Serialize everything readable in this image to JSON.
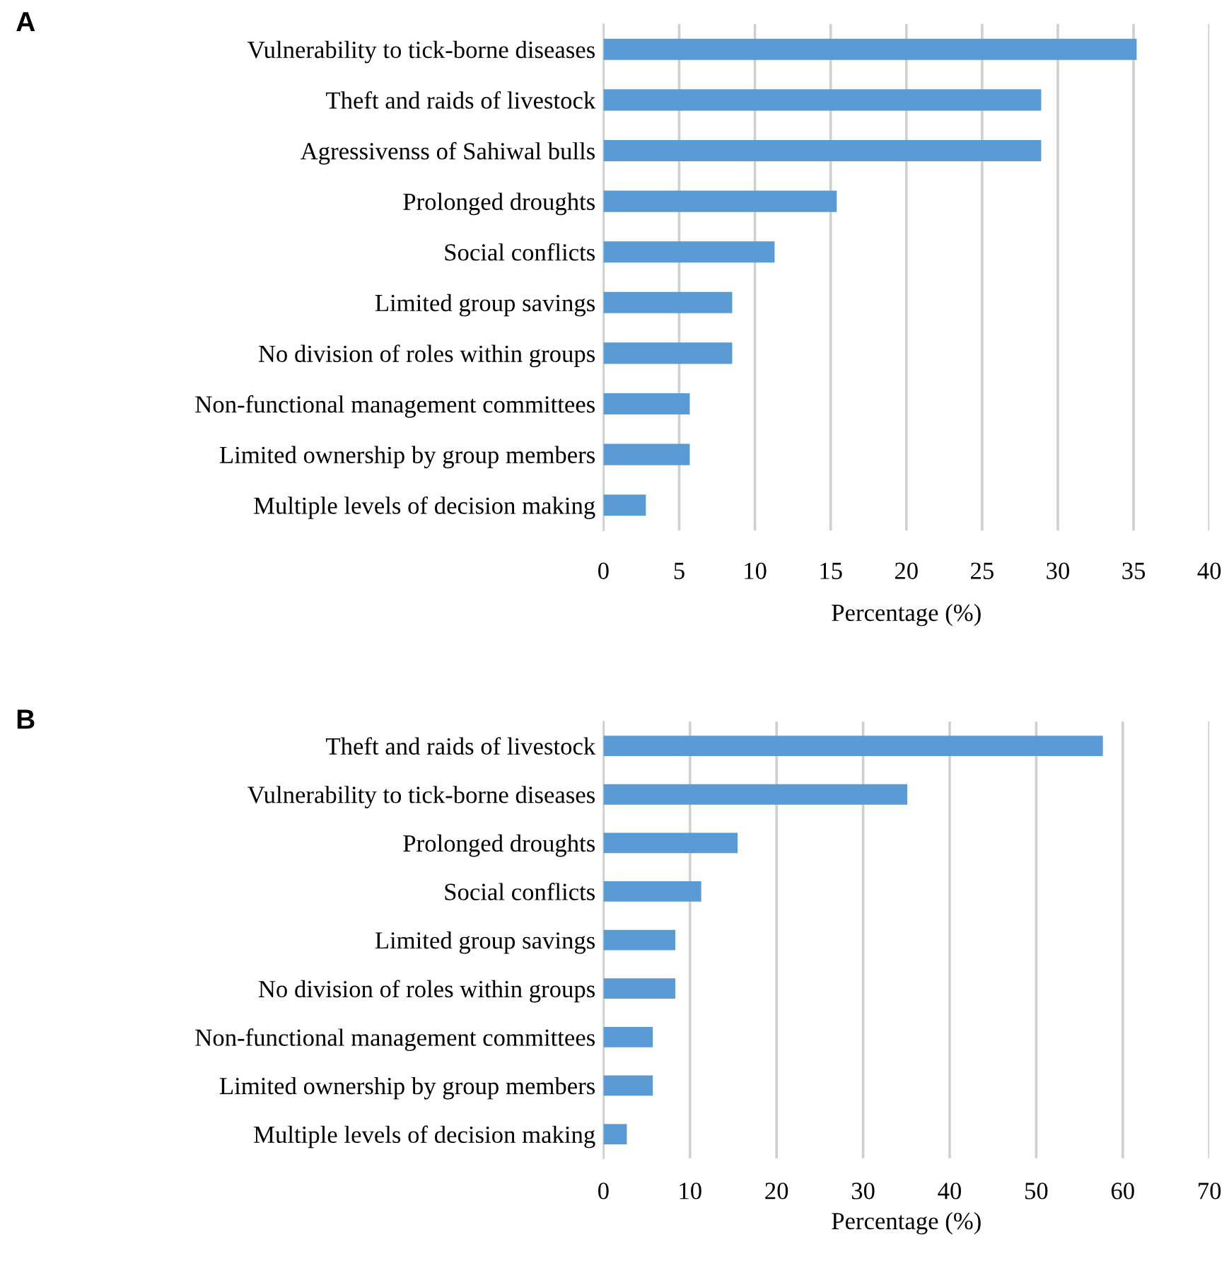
{
  "chart_data": [
    {
      "type": "bar",
      "orientation": "horizontal",
      "title": "A",
      "xlabel": "Percentage (%)",
      "categories": [
        "Vulnerability to tick-borne diseases",
        "Theft and raids of livestock",
        "Agressivenss of Sahiwal bulls",
        "Prolonged droughts",
        "Social conflicts",
        "Limited group savings",
        "No division of roles within groups",
        "Non-functional management committees",
        "Limited ownership by group members",
        "Multiple levels of decision making"
      ],
      "values": [
        35.2,
        28.9,
        28.9,
        15.4,
        11.3,
        8.5,
        8.5,
        5.7,
        5.7,
        2.8
      ],
      "color": "#5b9bd5",
      "xlim": [
        0,
        40
      ],
      "xticks": [
        0,
        5,
        10,
        15,
        20,
        25,
        30,
        35,
        40
      ],
      "grid": "x"
    },
    {
      "type": "bar",
      "orientation": "horizontal",
      "title": "B",
      "xlabel": "Percentage (%)",
      "categories": [
        "Theft and raids of livestock",
        "Vulnerability to tick-borne diseases",
        "Prolonged droughts",
        "Social conflicts",
        "Limited group savings",
        "No division of roles within groups",
        "Non-functional management committees",
        "Limited ownership by group members",
        "Multiple levels of decision making"
      ],
      "values": [
        57.7,
        35.1,
        15.5,
        11.3,
        8.3,
        8.3,
        5.7,
        5.7,
        2.7
      ],
      "color": "#5b9bd5",
      "xlim": [
        0,
        70
      ],
      "xticks": [
        0,
        10,
        20,
        30,
        40,
        50,
        60,
        70
      ],
      "grid": "x"
    }
  ]
}
